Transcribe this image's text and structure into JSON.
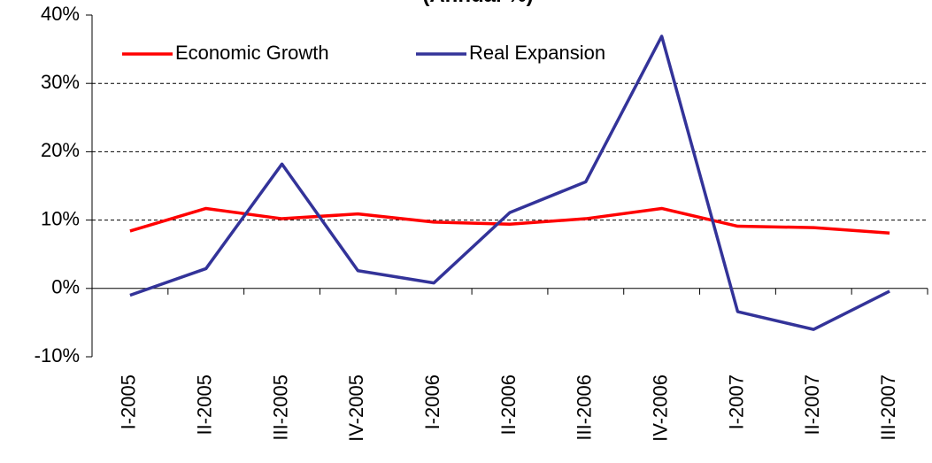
{
  "chart_data": {
    "type": "line",
    "title": "(Annual %)",
    "categories": [
      "I-2005",
      "II-2005",
      "III-2005",
      "IV-2005",
      "I-2006",
      "II-2006",
      "III-2006",
      "IV-2006",
      "I-2007",
      "II-2007",
      "III-2007"
    ],
    "series": [
      {
        "name": "Economic Growth",
        "color": "#ff0000",
        "values": [
          8.4,
          11.7,
          10.2,
          10.9,
          9.7,
          9.4,
          10.2,
          11.7,
          9.1,
          8.9,
          8.1
        ]
      },
      {
        "name": "Real Expansion",
        "color": "#333399",
        "values": [
          -1.0,
          2.9,
          18.2,
          2.6,
          0.8,
          11.1,
          15.6,
          36.9,
          -3.4,
          -6.0,
          -0.4
        ]
      }
    ],
    "ylim": [
      -10,
      40
    ],
    "yticks": [
      {
        "value": -10,
        "label": "-10%"
      },
      {
        "value": 0,
        "label": "0%"
      },
      {
        "value": 10,
        "label": "10%"
      },
      {
        "value": 20,
        "label": "20%"
      },
      {
        "value": 30,
        "label": "30%"
      },
      {
        "value": 40,
        "label": "40%"
      }
    ],
    "grid": true,
    "legend": "top-left"
  }
}
